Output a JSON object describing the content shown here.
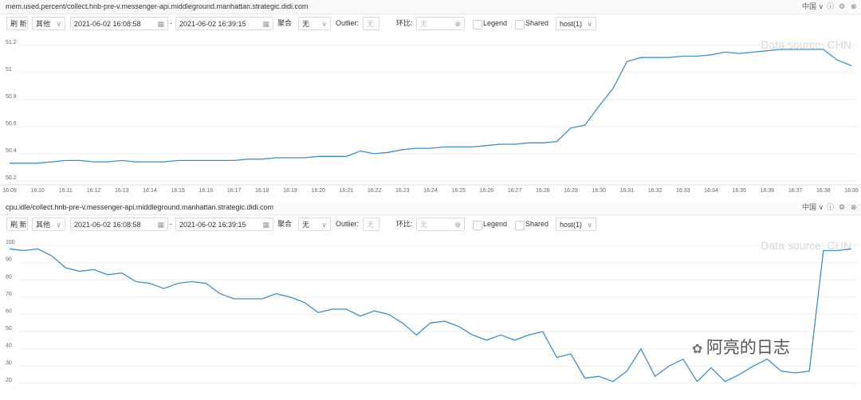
{
  "panels": [
    {
      "title": "mem.used.percent/collect.hnb-pre-v.messenger-api.middleground.manhattan.strategic.didi.com",
      "region": "中国",
      "toolbar": {
        "refresh": "刷 新",
        "more": "其他",
        "start": "2021-06-02 16:08:58",
        "separator": "-",
        "end": "2021-06-02 16:39:15",
        "aggregate_label": "聚合",
        "aggregate": "无",
        "outlier_label": "Outlier:",
        "outlier": "无",
        "compare_label": "环比:",
        "compare": "无",
        "legend": "Legend",
        "shared": "Shared",
        "host": "host(1)"
      }
    },
    {
      "title": "cpu.idle/collect.hnb-pre-v.messenger-api.middleground.manhattan.strategic.didi.com",
      "region": "中国",
      "toolbar": {
        "refresh": "刷 新",
        "more": "其他",
        "start": "2021-06-02 16:08:58",
        "separator": "-",
        "end": "2021-06-02 16:39:15",
        "aggregate_label": "聚合",
        "aggregate": "无",
        "outlier_label": "Outlier:",
        "outlier": "无",
        "compare_label": "环比:",
        "compare": "无",
        "legend": "Legend",
        "shared": "Shared",
        "host": "host(1)"
      }
    }
  ],
  "overlay": "阿亮的日志",
  "chart_data": [
    {
      "type": "line",
      "watermark": "Data source: CHN",
      "color": "#3f8fc4",
      "grid": true,
      "categories": [
        "16:09",
        null,
        "16:10",
        null,
        "16:11",
        null,
        "16:12",
        null,
        "16:13",
        null,
        "16:14",
        null,
        "16:15",
        null,
        "16:16",
        null,
        "16:17",
        null,
        "16:18",
        null,
        "16:19",
        null,
        "16:20",
        null,
        "16:21",
        null,
        "16:22",
        null,
        "16:23",
        null,
        "16:24",
        null,
        "16:25",
        null,
        "16:26",
        null,
        "16:27",
        null,
        "16:28",
        null,
        "16:29",
        null,
        "16:30",
        null,
        "16:31",
        null,
        "16:32",
        null,
        "16:33",
        null,
        "16:34",
        null,
        "16:35",
        null,
        "16:36",
        null,
        "16:37",
        null,
        "16:38",
        null,
        "16:39"
      ],
      "values": [
        50.33,
        50.33,
        50.33,
        50.34,
        50.35,
        50.35,
        50.34,
        50.34,
        50.35,
        50.34,
        50.34,
        50.34,
        50.35,
        50.35,
        50.35,
        50.35,
        50.35,
        50.36,
        50.36,
        50.37,
        50.37,
        50.37,
        50.38,
        50.38,
        50.38,
        50.42,
        50.4,
        50.41,
        50.43,
        50.44,
        50.44,
        50.45,
        50.45,
        50.45,
        50.46,
        50.47,
        50.47,
        50.48,
        50.48,
        50.49,
        50.59,
        50.61,
        50.75,
        50.88,
        51.08,
        51.11,
        51.11,
        51.11,
        51.12,
        51.12,
        51.13,
        51.15,
        51.14,
        51.15,
        51.16,
        51.17,
        51.17,
        51.17,
        51.17,
        51.09,
        51.05
      ],
      "ylim": [
        50.17,
        51.27
      ],
      "yticks": [
        50.2,
        50.4,
        50.6,
        50.8,
        51,
        51.2
      ]
    },
    {
      "type": "line",
      "watermark": "Data source: CHN",
      "color": "#3f8fc4",
      "grid": true,
      "values": [
        98,
        97,
        98,
        94,
        87,
        85,
        86,
        83,
        84,
        79,
        78,
        75,
        78,
        79,
        78,
        72,
        69,
        69,
        69,
        72,
        70,
        67,
        61,
        63,
        63,
        59,
        62,
        60,
        55,
        48,
        55,
        56,
        53,
        48,
        45,
        48,
        45,
        48,
        50,
        35,
        37,
        23,
        24,
        21,
        27,
        40,
        24,
        30,
        34,
        21,
        29,
        21,
        25,
        30,
        34,
        27,
        26,
        27,
        97,
        97,
        98
      ],
      "ylim": [
        18.6,
        105.1
      ],
      "yticks": [
        20,
        30,
        40,
        50,
        60,
        70,
        80,
        90,
        100
      ]
    }
  ]
}
